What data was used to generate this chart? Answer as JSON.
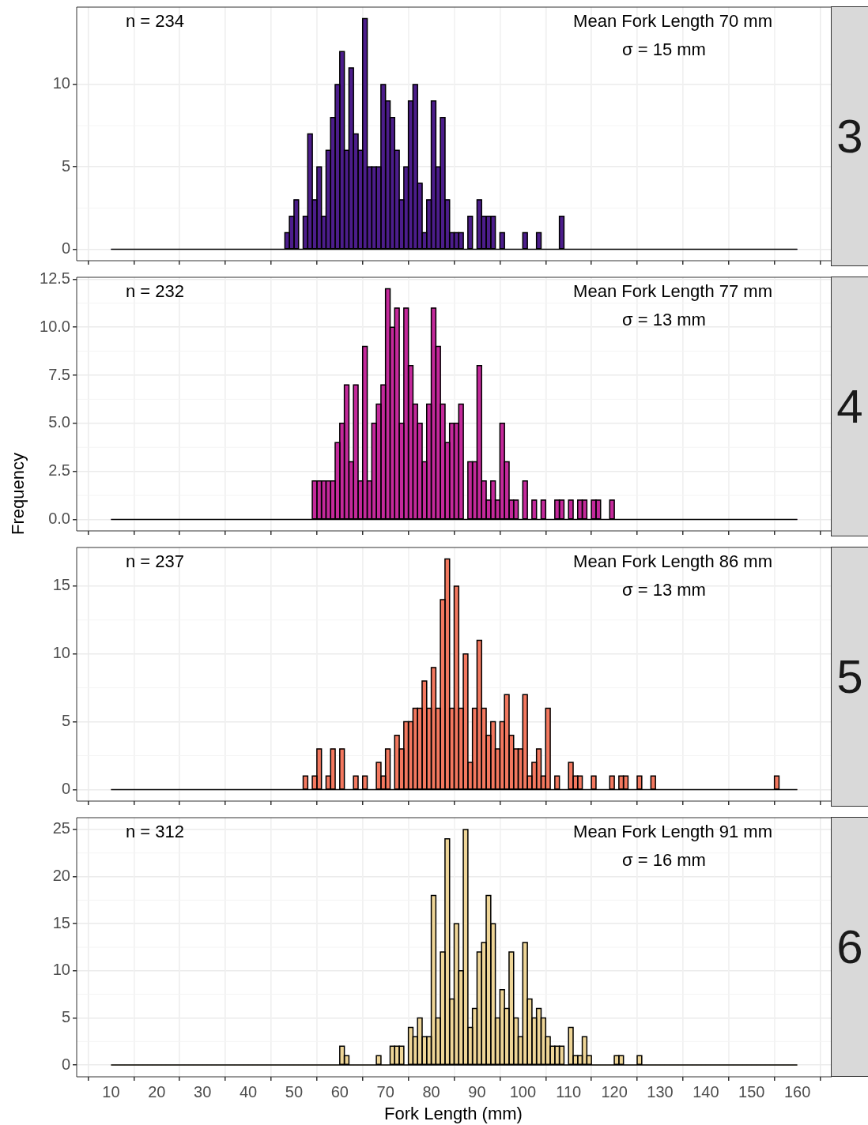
{
  "chart_data": [
    {
      "type": "histogram",
      "title": "3",
      "annotations": [
        "n = 234",
        "Mean Fork Length 70 mm",
        "σ = 15 mm"
      ],
      "bins": [
        10,
        11,
        12,
        13,
        14,
        15,
        16,
        17,
        18,
        19,
        20,
        21,
        22,
        23,
        24,
        25,
        26,
        27,
        28,
        29,
        30,
        31,
        32,
        33,
        34,
        35,
        36,
        37,
        38,
        39,
        40,
        41,
        42,
        43,
        44,
        45,
        46,
        47,
        48,
        49,
        50,
        51,
        52,
        53,
        54,
        55,
        56,
        57,
        58,
        59,
        60,
        61,
        62,
        63,
        64,
        65,
        66,
        67,
        68,
        69,
        70,
        71,
        72,
        73,
        74,
        75,
        76,
        77,
        78,
        79,
        80,
        81,
        82,
        83,
        84,
        85,
        86,
        87,
        88,
        89,
        90,
        91,
        92,
        93,
        94,
        95,
        96,
        97,
        98,
        99,
        100,
        101,
        102,
        103,
        104,
        105,
        106,
        107,
        108,
        109,
        110,
        111,
        112,
        113,
        114,
        115,
        116,
        117,
        118,
        119,
        120,
        121,
        122,
        123,
        124,
        125,
        126,
        127,
        128,
        129,
        130,
        131,
        132,
        133,
        134,
        135,
        136,
        137,
        138,
        139,
        140,
        141,
        142,
        143,
        144,
        145,
        146,
        147,
        148,
        149,
        150,
        151,
        152,
        153,
        154,
        155,
        156,
        157,
        158,
        159,
        160
      ],
      "values": [
        0,
        0,
        0,
        0,
        0,
        0,
        0,
        0,
        0,
        0,
        0,
        0,
        0,
        0,
        0,
        0,
        0,
        0,
        0,
        0,
        0,
        0,
        0,
        0,
        0,
        0,
        0,
        0,
        0,
        0,
        0,
        0,
        0,
        0,
        0,
        0,
        0,
        0,
        1,
        2,
        3,
        0,
        2,
        7,
        3,
        5,
        2,
        6,
        8,
        10,
        12,
        6,
        11,
        7,
        6,
        14,
        5,
        5,
        5,
        10,
        9,
        8,
        6,
        3,
        5,
        9,
        10,
        4,
        1,
        3,
        9,
        5,
        8,
        3,
        1,
        1,
        1,
        0,
        2,
        0,
        3,
        2,
        2,
        2,
        0,
        1,
        0,
        0,
        0,
        0,
        1,
        0,
        0,
        1,
        0,
        0,
        0,
        0,
        2,
        0,
        0,
        0,
        0,
        0,
        0,
        0,
        0,
        0,
        0,
        0,
        0,
        0,
        0,
        0,
        0,
        0,
        0,
        0,
        0,
        0,
        0,
        0,
        0,
        0,
        0,
        0,
        0,
        0,
        0,
        0,
        0,
        0,
        0,
        0,
        0,
        0,
        0,
        0,
        0,
        0,
        0,
        0,
        0,
        0,
        0,
        0,
        0,
        0,
        0,
        0
      ],
      "color": "#4c1d8b",
      "xlim": [
        2.5,
        167.5
      ],
      "xticks": [
        10,
        20,
        30,
        40,
        50,
        60,
        70,
        80,
        90,
        100,
        110,
        120,
        130,
        140,
        150,
        160
      ],
      "ylim": [
        -0.7,
        14.7
      ],
      "yticks": [
        0,
        5,
        10
      ],
      "grid": true,
      "tick_labels": "y"
    },
    {
      "type": "histogram",
      "title": "4",
      "annotations": [
        "n = 232",
        "Mean Fork Length 77 mm",
        "σ = 13 mm"
      ],
      "bins": [
        10,
        11,
        12,
        13,
        14,
        15,
        16,
        17,
        18,
        19,
        20,
        21,
        22,
        23,
        24,
        25,
        26,
        27,
        28,
        29,
        30,
        31,
        32,
        33,
        34,
        35,
        36,
        37,
        38,
        39,
        40,
        41,
        42,
        43,
        44,
        45,
        46,
        47,
        48,
        49,
        50,
        51,
        52,
        53,
        54,
        55,
        56,
        57,
        58,
        59,
        60,
        61,
        62,
        63,
        64,
        65,
        66,
        67,
        68,
        69,
        70,
        71,
        72,
        73,
        74,
        75,
        76,
        77,
        78,
        79,
        80,
        81,
        82,
        83,
        84,
        85,
        86,
        87,
        88,
        89,
        90,
        91,
        92,
        93,
        94,
        95,
        96,
        97,
        98,
        99,
        100,
        101,
        102,
        103,
        104,
        105,
        106,
        107,
        108,
        109,
        110,
        111,
        112,
        113,
        114,
        115,
        116,
        117,
        118,
        119,
        120,
        121,
        122,
        123,
        124,
        125,
        126,
        127,
        128,
        129,
        130,
        131,
        132,
        133,
        134,
        135,
        136,
        137,
        138,
        139,
        140,
        141,
        142,
        143,
        144,
        145,
        146,
        147,
        148,
        149,
        150,
        151,
        152,
        153,
        154,
        155,
        156,
        157,
        158,
        159,
        160
      ],
      "values": [
        0,
        0,
        0,
        0,
        0,
        0,
        0,
        0,
        0,
        0,
        0,
        0,
        0,
        0,
        0,
        0,
        0,
        0,
        0,
        0,
        0,
        0,
        0,
        0,
        0,
        0,
        0,
        0,
        0,
        0,
        0,
        0,
        0,
        0,
        0,
        0,
        0,
        0,
        0,
        0,
        0,
        0,
        0,
        0,
        2,
        2,
        2,
        2,
        2,
        4,
        5,
        7,
        3,
        7,
        2,
        9,
        2,
        5,
        6,
        7,
        12,
        10,
        11,
        5,
        11,
        8,
        6,
        5,
        3,
        6,
        11,
        9,
        6,
        4,
        5,
        5,
        6,
        0,
        3,
        3,
        8,
        2,
        1,
        2,
        1,
        5,
        3,
        1,
        1,
        0,
        2,
        0,
        1,
        0,
        1,
        0,
        0,
        1,
        1,
        0,
        1,
        0,
        1,
        1,
        0,
        1,
        1,
        0,
        0,
        1,
        0,
        0,
        0,
        0,
        0,
        0,
        0,
        0,
        0,
        0,
        0,
        0,
        0,
        0,
        0,
        0,
        0,
        0,
        0,
        0,
        0,
        0,
        0,
        0,
        0,
        0,
        0,
        0,
        0,
        0,
        0,
        0,
        0,
        0,
        0,
        0,
        0,
        0,
        0,
        0
      ],
      "color": "#c4299b",
      "ylabel": "Frequency",
      "xlim": [
        2.5,
        167.5
      ],
      "xticks": [
        10,
        20,
        30,
        40,
        50,
        60,
        70,
        80,
        90,
        100,
        110,
        120,
        130,
        140,
        150,
        160
      ],
      "ylim": [
        -0.6,
        12.6
      ],
      "yticks": [
        {
          "value": 0,
          "label": "0.0"
        },
        {
          "value": 2.5,
          "label": "2.5"
        },
        {
          "value": 5,
          "label": "5.0"
        },
        {
          "value": 7.5,
          "label": "7.5"
        },
        {
          "value": 10,
          "label": "10.0"
        },
        {
          "value": 12.5,
          "label": "12.5"
        }
      ],
      "grid": true,
      "tick_labels": "y"
    },
    {
      "type": "histogram",
      "title": "5",
      "annotations": [
        "n = 237",
        "Mean Fork Length 86 mm",
        "σ = 13 mm"
      ],
      "bins": [
        10,
        11,
        12,
        13,
        14,
        15,
        16,
        17,
        18,
        19,
        20,
        21,
        22,
        23,
        24,
        25,
        26,
        27,
        28,
        29,
        30,
        31,
        32,
        33,
        34,
        35,
        36,
        37,
        38,
        39,
        40,
        41,
        42,
        43,
        44,
        45,
        46,
        47,
        48,
        49,
        50,
        51,
        52,
        53,
        54,
        55,
        56,
        57,
        58,
        59,
        60,
        61,
        62,
        63,
        64,
        65,
        66,
        67,
        68,
        69,
        70,
        71,
        72,
        73,
        74,
        75,
        76,
        77,
        78,
        79,
        80,
        81,
        82,
        83,
        84,
        85,
        86,
        87,
        88,
        89,
        90,
        91,
        92,
        93,
        94,
        95,
        96,
        97,
        98,
        99,
        100,
        101,
        102,
        103,
        104,
        105,
        106,
        107,
        108,
        109,
        110,
        111,
        112,
        113,
        114,
        115,
        116,
        117,
        118,
        119,
        120,
        121,
        122,
        123,
        124,
        125,
        126,
        127,
        128,
        129,
        130,
        131,
        132,
        133,
        134,
        135,
        136,
        137,
        138,
        139,
        140,
        141,
        142,
        143,
        144,
        145,
        146,
        147,
        148,
        149,
        150,
        151,
        152,
        153,
        154,
        155,
        156,
        157,
        158,
        159,
        160
      ],
      "values": [
        0,
        0,
        0,
        0,
        0,
        0,
        0,
        0,
        0,
        0,
        0,
        0,
        0,
        0,
        0,
        0,
        0,
        0,
        0,
        0,
        0,
        0,
        0,
        0,
        0,
        0,
        0,
        0,
        0,
        0,
        0,
        0,
        0,
        0,
        0,
        0,
        0,
        0,
        0,
        0,
        0,
        0,
        1,
        0,
        1,
        3,
        0,
        1,
        3,
        0,
        3,
        0,
        0,
        1,
        0,
        1,
        0,
        0,
        2,
        1,
        3,
        0,
        4,
        3,
        5,
        5,
        6,
        6,
        8,
        6,
        9,
        6,
        14,
        17,
        6,
        15,
        6,
        10,
        2,
        6,
        11,
        6,
        4,
        5,
        3,
        5,
        7,
        4,
        3,
        3,
        7,
        1,
        2,
        3,
        1,
        6,
        0,
        1,
        0,
        0,
        2,
        1,
        1,
        0,
        0,
        1,
        0,
        0,
        0,
        1,
        0,
        1,
        1,
        0,
        0,
        1,
        0,
        0,
        1,
        0,
        0,
        0,
        0,
        0,
        0,
        0,
        0,
        0,
        0,
        0,
        0,
        0,
        0,
        0,
        0,
        0,
        0,
        0,
        0,
        0,
        0,
        0,
        0,
        0,
        0,
        1,
        0,
        0,
        0,
        0
      ],
      "color": "#f3785f",
      "xlim": [
        2.5,
        167.5
      ],
      "xticks": [
        10,
        20,
        30,
        40,
        50,
        60,
        70,
        80,
        90,
        100,
        110,
        120,
        130,
        140,
        150,
        160
      ],
      "ylim": [
        -0.85,
        17.85
      ],
      "yticks": [
        0,
        5,
        10,
        15
      ],
      "grid": true,
      "tick_labels": "y"
    },
    {
      "type": "histogram",
      "title": "6",
      "annotations": [
        "n = 312",
        "Mean Fork Length 91 mm",
        "σ = 16 mm"
      ],
      "xlabel": "Fork Length (mm)",
      "bins": [
        10,
        11,
        12,
        13,
        14,
        15,
        16,
        17,
        18,
        19,
        20,
        21,
        22,
        23,
        24,
        25,
        26,
        27,
        28,
        29,
        30,
        31,
        32,
        33,
        34,
        35,
        36,
        37,
        38,
        39,
        40,
        41,
        42,
        43,
        44,
        45,
        46,
        47,
        48,
        49,
        50,
        51,
        52,
        53,
        54,
        55,
        56,
        57,
        58,
        59,
        60,
        61,
        62,
        63,
        64,
        65,
        66,
        67,
        68,
        69,
        70,
        71,
        72,
        73,
        74,
        75,
        76,
        77,
        78,
        79,
        80,
        81,
        82,
        83,
        84,
        85,
        86,
        87,
        88,
        89,
        90,
        91,
        92,
        93,
        94,
        95,
        96,
        97,
        98,
        99,
        100,
        101,
        102,
        103,
        104,
        105,
        106,
        107,
        108,
        109,
        110,
        111,
        112,
        113,
        114,
        115,
        116,
        117,
        118,
        119,
        120,
        121,
        122,
        123,
        124,
        125,
        126,
        127,
        128,
        129,
        130,
        131,
        132,
        133,
        134,
        135,
        136,
        137,
        138,
        139,
        140,
        141,
        142,
        143,
        144,
        145,
        146,
        147,
        148,
        149,
        150,
        151,
        152,
        153,
        154,
        155,
        156,
        157,
        158,
        159,
        160
      ],
      "values": [
        0,
        0,
        0,
        0,
        0,
        0,
        0,
        0,
        0,
        0,
        0,
        0,
        0,
        0,
        0,
        0,
        0,
        0,
        0,
        0,
        0,
        0,
        0,
        0,
        0,
        0,
        0,
        0,
        0,
        0,
        0,
        0,
        0,
        0,
        0,
        0,
        0,
        0,
        0,
        0,
        0,
        0,
        0,
        0,
        0,
        0,
        0,
        0,
        0,
        0,
        2,
        1,
        0,
        0,
        0,
        0,
        0,
        0,
        1,
        0,
        0,
        2,
        2,
        2,
        0,
        4,
        3,
        5,
        3,
        3,
        18,
        5,
        12,
        24,
        7,
        15,
        10,
        25,
        4,
        6,
        12,
        13,
        18,
        15,
        5,
        8,
        6,
        12,
        5,
        3,
        13,
        7,
        5,
        6,
        5,
        3,
        2,
        2,
        2,
        0,
        4,
        1,
        1,
        3,
        1,
        0,
        0,
        0,
        0,
        0,
        1,
        1,
        0,
        0,
        0,
        1,
        0,
        0,
        0,
        0,
        0,
        0,
        0,
        0,
        0,
        0,
        0,
        0,
        0,
        0,
        0,
        0,
        0,
        0,
        0,
        0,
        0,
        0,
        0,
        0,
        0,
        0,
        0,
        0,
        0,
        0,
        0,
        0,
        0,
        0
      ],
      "color": "#eed597",
      "xlim": [
        2.5,
        167.5
      ],
      "xticks": [
        10,
        20,
        30,
        40,
        50,
        60,
        70,
        80,
        90,
        100,
        110,
        120,
        130,
        140,
        150,
        160
      ],
      "ylim": [
        -1.25,
        26.25
      ],
      "yticks": [
        0,
        5,
        10,
        15,
        20,
        25
      ],
      "grid": true
    }
  ]
}
